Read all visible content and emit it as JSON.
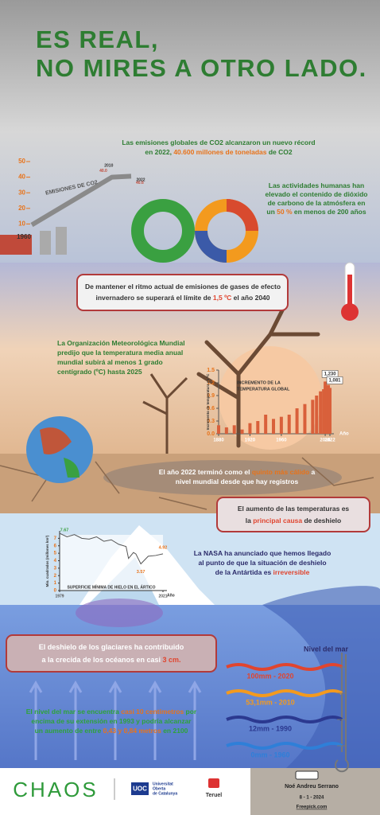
{
  "title": [
    "ES REAL,",
    "NO MIRES A OTRO LADO."
  ],
  "blocks": {
    "co2_record": [
      [
        {
          "t": "Las emisiones globales de CO2 alcanzaron un nuevo récord"
        }
      ],
      [
        {
          "t": "en 2022, "
        },
        {
          "t": "40.600 millones de toneladas",
          "hl": true
        },
        {
          "t": " de CO2"
        }
      ]
    ],
    "human": [
      [
        {
          "t": "Las actividades humanas han"
        }
      ],
      [
        {
          "t": "elevado el contenido de dióxido"
        }
      ],
      [
        {
          "t": "de carbono de la atmósfera en"
        }
      ],
      [
        {
          "t": "un "
        },
        {
          "t": "50 %",
          "hl": true
        },
        {
          "t": " en menos de 200 años"
        }
      ]
    ],
    "limit": [
      [
        {
          "t": "De mantener el ritmo actual de emisiones de gases de efecto"
        }
      ],
      [
        {
          "t": "invernadero se superará el límite de "
        },
        {
          "t": "1,5 ºC",
          "hl": true
        },
        {
          "t": " el año 2040"
        }
      ]
    ],
    "omm": [
      [
        {
          "t": "La Organización Meteorológica Mundial"
        }
      ],
      [
        {
          "t": "predijo que la temperatura media anual"
        }
      ],
      [
        {
          "t": "mundial subirá al menos 1 grado"
        }
      ],
      [
        {
          "t": "centígrado (ºC) hasta 2025"
        }
      ]
    ],
    "year2022": [
      [
        {
          "t": "El año 2022 terminó como el "
        },
        {
          "t": "quinto más cálido",
          "hl": true
        },
        {
          "t": " a"
        }
      ],
      [
        {
          "t": "nivel mundial desde que hay registros"
        }
      ]
    ],
    "cause": [
      [
        {
          "t": "El aumento de las temperaturas es"
        }
      ],
      [
        {
          "t": "la "
        },
        {
          "t": "principal causa",
          "hl": true
        },
        {
          "t": " de deshielo"
        }
      ]
    ],
    "nasa": [
      [
        {
          "t": "La NASA ha anunciado que hemos llegado"
        }
      ],
      [
        {
          "t": "al punto de que la situación de deshielo"
        }
      ],
      [
        {
          "t": "de la Antártida es "
        },
        {
          "t": "irreversible",
          "hl": true
        }
      ]
    ],
    "glaciers": [
      [
        {
          "t": "El deshielo de los glaciares ha contribuido"
        }
      ],
      [
        {
          "t": "a la crecida de los océanos en casi "
        },
        {
          "t": "3 cm.",
          "hl": true
        }
      ]
    ],
    "sea": [
      [
        {
          "t": "El nivel del mar se encuentra "
        },
        {
          "t": "casi 10 centímetros",
          "hl": true
        },
        {
          "t": " por"
        }
      ],
      [
        {
          "t": "encima de su extensión en 1993 y podría alcanzar"
        }
      ],
      [
        {
          "t": "un aumento de entre "
        },
        {
          "t": "0,43 y 0,84 metros",
          "hl": true
        },
        {
          "t": " en 2100"
        }
      ]
    ]
  },
  "emissions_chart": {
    "type": "line",
    "title": "EMISIONES DE CO2",
    "x": [
      1960,
      2010,
      2022
    ],
    "values": [
      9.4,
      40,
      40.6
    ],
    "value_labels": [
      null,
      "40.0",
      "40.6"
    ],
    "x_labels": [
      "1960",
      "2010",
      "2022"
    ],
    "ylim": [
      0,
      50
    ],
    "yticks": [
      10,
      20,
      30,
      40,
      50
    ],
    "color": "#8a8a8a"
  },
  "temp_chart": {
    "type": "bar",
    "title": [
      "INCREMENTO DE LA",
      "TEMPERATURA GLOBAL"
    ],
    "y_label": "Incremento de temperatura en ºC",
    "x_label": "Año",
    "x": [
      1880,
      1890,
      1900,
      1910,
      1920,
      1930,
      1940,
      1950,
      1960,
      1970,
      1980,
      1990,
      2000,
      2005,
      2010,
      2014,
      2016,
      2018,
      2020,
      2022
    ],
    "values": [
      0.2,
      0.15,
      0.2,
      0.1,
      0.25,
      0.3,
      0.45,
      0.35,
      0.4,
      0.45,
      0.6,
      0.7,
      0.8,
      0.9,
      1.0,
      1.05,
      1.23,
      1.1,
      1.15,
      1.081
    ],
    "value_labels": [
      null,
      null,
      null,
      null,
      null,
      null,
      null,
      null,
      null,
      null,
      null,
      null,
      null,
      null,
      null,
      null,
      "1,230",
      null,
      null,
      "1,081"
    ],
    "xlim": [
      1880,
      2022
    ],
    "xticks": [
      1880,
      1920,
      1960,
      2016,
      2022
    ],
    "ylim": [
      0,
      1.5
    ],
    "yticks": [
      {
        "value": 0,
        "label": "0.0"
      },
      0.3,
      0.6,
      0.9,
      1.2,
      1.5
    ],
    "color": "#d9603b"
  },
  "ice_chart": {
    "type": "line",
    "title": "SUPERFICIE MÍNIMA DE HIELO EN EL ÁRTICO",
    "y_label": "Mio. cuadrados (millones km²)",
    "x_label": "Año",
    "x": [
      1979,
      1982,
      1985,
      1988,
      1991,
      1994,
      1997,
      2000,
      2003,
      2006,
      2007,
      2009,
      2010,
      2012,
      2015,
      2018,
      2021
    ],
    "values": [
      7.67,
      7.2,
      7.5,
      7.0,
      6.9,
      7.2,
      6.6,
      6.8,
      6.2,
      5.9,
      4.3,
      5.1,
      4.9,
      3.57,
      4.6,
      4.7,
      4.92
    ],
    "xlim": [
      1979,
      2021
    ],
    "xticks": [
      1979,
      2021
    ],
    "ylim": [
      0,
      8
    ],
    "yticks": [
      0,
      1,
      2,
      3,
      4,
      5,
      6,
      7
    ],
    "color": "#555555"
  },
  "sea_level": {
    "title": "Nivel del mar",
    "items": [
      {
        "label": "100mm - 2020",
        "color": "#e0452f"
      },
      {
        "label": "53,1mm - 2010",
        "color": "#f39a1e"
      },
      {
        "label": "12mm - 1990",
        "color": "#2b3990"
      },
      {
        "label": "0mm - 1960",
        "color": "#2f7fd8"
      }
    ]
  },
  "footer": {
    "logo": "CHAOS",
    "uni": [
      "Universitat",
      "Oberta",
      "de Catalunya"
    ],
    "uni_mark": "UOC",
    "city": "Teruel",
    "author": "Noé Andreu Serrano",
    "date": "8 - 1 - 2024",
    "credit": "Freepick.com"
  }
}
